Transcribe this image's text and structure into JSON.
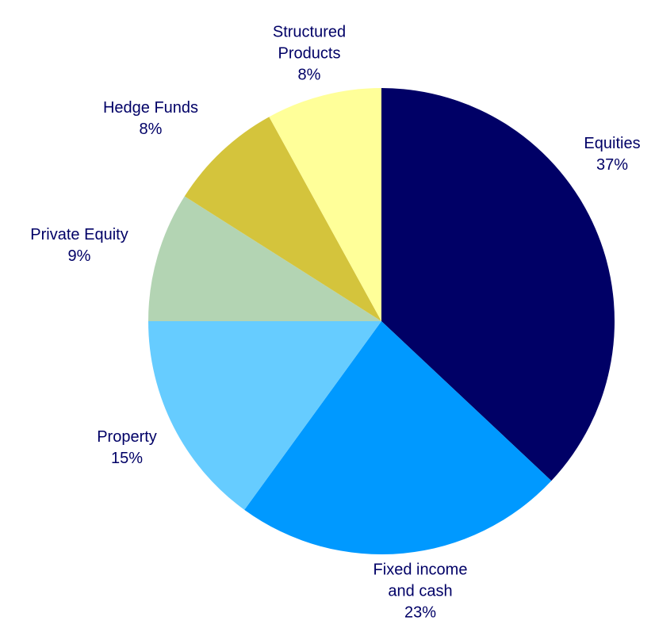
{
  "chart_data": {
    "type": "pie",
    "categories": [
      "Equities",
      "Fixed income and cash",
      "Property",
      "Private Equity",
      "Hedge Funds",
      "Structured Products"
    ],
    "values": [
      37,
      23,
      15,
      9,
      8,
      8
    ],
    "value_labels": [
      "37%",
      "23%",
      "15%",
      "9%",
      "8%",
      "8%"
    ],
    "colors": [
      "#000066",
      "#0099ff",
      "#66ccff",
      "#b3d4b3",
      "#d4c43c",
      "#ffff99"
    ]
  }
}
